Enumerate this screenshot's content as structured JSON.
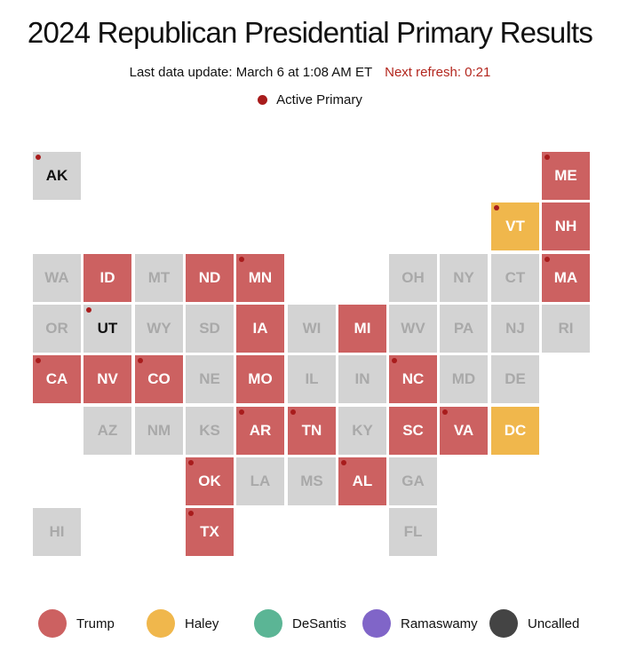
{
  "title": "2024 Republican Presidential Primary Results",
  "update": {
    "last_update": "Last data update: March 6 at 1:08 AM ET",
    "next_refresh": "Next refresh: 0:21"
  },
  "active_label": "Active Primary",
  "colors": {
    "Trump": "#cc6161",
    "Haley": "#f0b74c",
    "DeSantis": "#5bb595",
    "Ramaswamy": "#8065c8",
    "Uncalled": "#444444",
    "pending": "#d3d3d3",
    "active_dot": "#a81c1c"
  },
  "legend": [
    "Trump",
    "Haley",
    "DeSantis",
    "Ramaswamy",
    "Uncalled"
  ],
  "states": [
    {
      "code": "AK",
      "row": 0,
      "col": 0,
      "winner": null,
      "active": true
    },
    {
      "code": "ME",
      "row": 0,
      "col": 10,
      "winner": "Trump",
      "active": true
    },
    {
      "code": "VT",
      "row": 1,
      "col": 9,
      "winner": "Haley",
      "active": true
    },
    {
      "code": "NH",
      "row": 1,
      "col": 10,
      "winner": "Trump",
      "active": false
    },
    {
      "code": "WA",
      "row": 2,
      "col": 0,
      "winner": null,
      "active": false
    },
    {
      "code": "ID",
      "row": 2,
      "col": 1,
      "winner": "Trump",
      "active": false
    },
    {
      "code": "MT",
      "row": 2,
      "col": 2,
      "winner": null,
      "active": false
    },
    {
      "code": "ND",
      "row": 2,
      "col": 3,
      "winner": "Trump",
      "active": false
    },
    {
      "code": "MN",
      "row": 2,
      "col": 4,
      "winner": "Trump",
      "active": true
    },
    {
      "code": "OH",
      "row": 2,
      "col": 7,
      "winner": null,
      "active": false
    },
    {
      "code": "NY",
      "row": 2,
      "col": 8,
      "winner": null,
      "active": false
    },
    {
      "code": "CT",
      "row": 2,
      "col": 9,
      "winner": null,
      "active": false
    },
    {
      "code": "MA",
      "row": 2,
      "col": 10,
      "winner": "Trump",
      "active": true
    },
    {
      "code": "OR",
      "row": 3,
      "col": 0,
      "winner": null,
      "active": false
    },
    {
      "code": "UT",
      "row": 3,
      "col": 1,
      "winner": null,
      "active": true
    },
    {
      "code": "WY",
      "row": 3,
      "col": 2,
      "winner": null,
      "active": false
    },
    {
      "code": "SD",
      "row": 3,
      "col": 3,
      "winner": null,
      "active": false
    },
    {
      "code": "IA",
      "row": 3,
      "col": 4,
      "winner": "Trump",
      "active": false
    },
    {
      "code": "WI",
      "row": 3,
      "col": 5,
      "winner": null,
      "active": false
    },
    {
      "code": "MI",
      "row": 3,
      "col": 6,
      "winner": "Trump",
      "active": false
    },
    {
      "code": "WV",
      "row": 3,
      "col": 7,
      "winner": null,
      "active": false
    },
    {
      "code": "PA",
      "row": 3,
      "col": 8,
      "winner": null,
      "active": false
    },
    {
      "code": "NJ",
      "row": 3,
      "col": 9,
      "winner": null,
      "active": false
    },
    {
      "code": "RI",
      "row": 3,
      "col": 10,
      "winner": null,
      "active": false
    },
    {
      "code": "CA",
      "row": 4,
      "col": 0,
      "winner": "Trump",
      "active": true
    },
    {
      "code": "NV",
      "row": 4,
      "col": 1,
      "winner": "Trump",
      "active": false
    },
    {
      "code": "CO",
      "row": 4,
      "col": 2,
      "winner": "Trump",
      "active": true
    },
    {
      "code": "NE",
      "row": 4,
      "col": 3,
      "winner": null,
      "active": false
    },
    {
      "code": "MO",
      "row": 4,
      "col": 4,
      "winner": "Trump",
      "active": false
    },
    {
      "code": "IL",
      "row": 4,
      "col": 5,
      "winner": null,
      "active": false
    },
    {
      "code": "IN",
      "row": 4,
      "col": 6,
      "winner": null,
      "active": false
    },
    {
      "code": "NC",
      "row": 4,
      "col": 7,
      "winner": "Trump",
      "active": true
    },
    {
      "code": "MD",
      "row": 4,
      "col": 8,
      "winner": null,
      "active": false
    },
    {
      "code": "DE",
      "row": 4,
      "col": 9,
      "winner": null,
      "active": false
    },
    {
      "code": "AZ",
      "row": 5,
      "col": 1,
      "winner": null,
      "active": false
    },
    {
      "code": "NM",
      "row": 5,
      "col": 2,
      "winner": null,
      "active": false
    },
    {
      "code": "KS",
      "row": 5,
      "col": 3,
      "winner": null,
      "active": false
    },
    {
      "code": "AR",
      "row": 5,
      "col": 4,
      "winner": "Trump",
      "active": true
    },
    {
      "code": "TN",
      "row": 5,
      "col": 5,
      "winner": "Trump",
      "active": true
    },
    {
      "code": "KY",
      "row": 5,
      "col": 6,
      "winner": null,
      "active": false
    },
    {
      "code": "SC",
      "row": 5,
      "col": 7,
      "winner": "Trump",
      "active": false
    },
    {
      "code": "VA",
      "row": 5,
      "col": 8,
      "winner": "Trump",
      "active": true
    },
    {
      "code": "DC",
      "row": 5,
      "col": 9,
      "winner": "Haley",
      "active": false
    },
    {
      "code": "OK",
      "row": 6,
      "col": 3,
      "winner": "Trump",
      "active": true
    },
    {
      "code": "LA",
      "row": 6,
      "col": 4,
      "winner": null,
      "active": false
    },
    {
      "code": "MS",
      "row": 6,
      "col": 5,
      "winner": null,
      "active": false
    },
    {
      "code": "AL",
      "row": 6,
      "col": 6,
      "winner": "Trump",
      "active": true
    },
    {
      "code": "GA",
      "row": 6,
      "col": 7,
      "winner": null,
      "active": false
    },
    {
      "code": "HI",
      "row": 7,
      "col": 0,
      "winner": null,
      "active": false
    },
    {
      "code": "TX",
      "row": 7,
      "col": 3,
      "winner": "Trump",
      "active": true
    },
    {
      "code": "FL",
      "row": 7,
      "col": 7,
      "winner": null,
      "active": false
    }
  ]
}
